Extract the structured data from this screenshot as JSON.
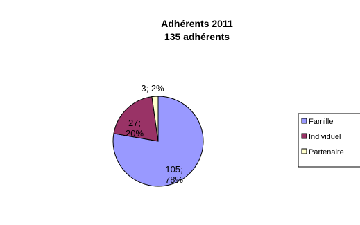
{
  "chart_data": {
    "type": "pie",
    "title": "Adhérents 2011",
    "subtitle": "135 adhérents",
    "legend_position": "right",
    "slices": [
      {
        "name": "Famille",
        "value": 105,
        "percent": 78,
        "color": "#9999ff",
        "label_lines": [
          "105;",
          "78%"
        ]
      },
      {
        "name": "Individuel",
        "value": 27,
        "percent": 20,
        "color": "#993366",
        "label_lines": [
          "27;",
          "20%"
        ]
      },
      {
        "name": "Partenaire",
        "value": 3,
        "percent": 2,
        "color": "#ffffcc",
        "label_lines": [
          "3; 2%"
        ]
      }
    ]
  }
}
